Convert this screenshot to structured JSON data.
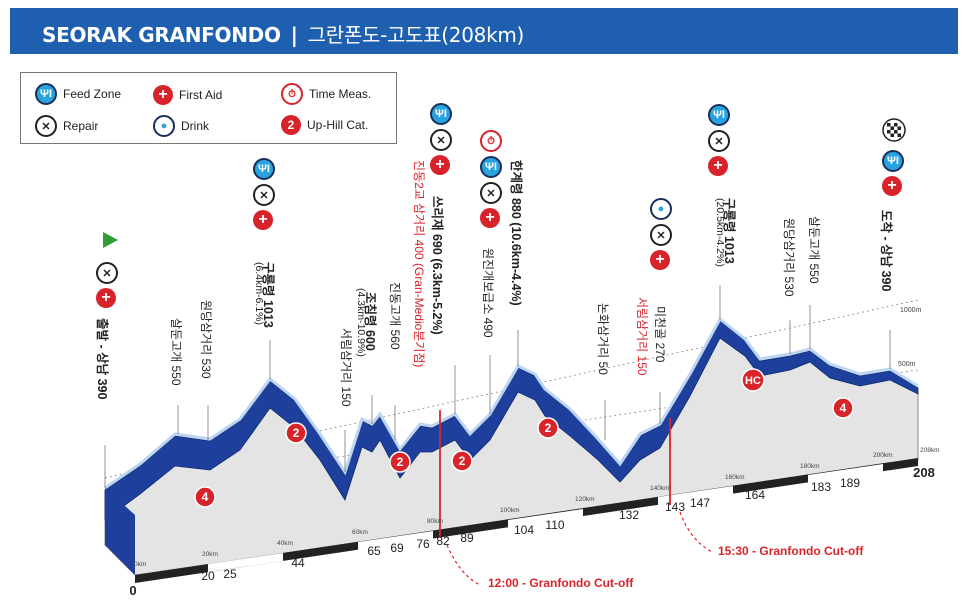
{
  "header": {
    "title": "SEORAK GRANFONDO",
    "separator": "|",
    "subtitle": "그란폰도-고도표(208km)"
  },
  "legend": {
    "feed_zone": "Feed Zone",
    "first_aid": "First Aid",
    "time_meas": "Time Meas.",
    "repair": "Repair",
    "drink": "Drink",
    "uphill_cat": "Up-Hill Cat.",
    "uphill_cat_example": "2"
  },
  "labels": {
    "start": "출발 - 상남 390",
    "salungogae1": "살둔고개 550",
    "wondang1": "원당삼거리 530",
    "guryong1": "구룡령 1013",
    "guryong1_grade": "(6.4km-6.1%)",
    "seorim1": "서림삼거리 150",
    "joCheolRyeong": "조침령 600",
    "joCheolRyeong_grade": "(4.3km-10.9%)",
    "jindonggogae": "진동고개 560",
    "jindong2": "진동2교 삼거리 400 (Gran-Medio분기점)",
    "ssirijae": "쓰리재 690 (6.3km-5.2%)",
    "wonjin": "원진개보급소 490",
    "hangyeryeong": "한계령 880 (10.6km-4.4%)",
    "nonhwa": "논화삼거리 50",
    "seorim2": "서림삼거리 150",
    "micheongol": "미천골 270",
    "guryong2": "구룡령 1013",
    "guryong2_grade": "(20.5km-4.2%)",
    "wondang2": "원당삼거리 530",
    "salungogae2": "살둔고개 550",
    "finish": "도착 - 상남 390"
  },
  "grid": {
    "alt_1000": "1000m",
    "alt_500": "500m",
    "km_marks": [
      "0km",
      "20km",
      "40km",
      "60km",
      "80km",
      "100km",
      "120km",
      "140km",
      "160km",
      "180km",
      "200km",
      "208km"
    ]
  },
  "km_points": [
    "0",
    "20",
    "25",
    "44",
    "65",
    "69",
    "76",
    "82",
    "89",
    "104",
    "110",
    "132",
    "143",
    "147",
    "164",
    "183",
    "189",
    "208"
  ],
  "categories": [
    "4",
    "2",
    "2",
    "2",
    "2",
    "HC",
    "4"
  ],
  "cutoffs": {
    "first": "12:00 - Granfondo Cut-off",
    "second": "15:30 - Granfondo Cut-off"
  },
  "colors": {
    "header": "#1f5fb0",
    "profile_blue": "#1f3f9c",
    "profile_light": "#bcd5f0",
    "red": "#d9232a"
  },
  "chart_data": {
    "type": "area",
    "title": "",
    "xlabel": "",
    "ylabel": "",
    "x": [
      0,
      10,
      20,
      25,
      30,
      40,
      44,
      50,
      60,
      65,
      69,
      76,
      80,
      82,
      86,
      89,
      95,
      100,
      104,
      110,
      115,
      120,
      125,
      132,
      138,
      143,
      147,
      155,
      160,
      164,
      170,
      175,
      183,
      189,
      195,
      200,
      208
    ],
    "y": [
      390,
      420,
      550,
      530,
      600,
      850,
      1013,
      800,
      150,
      600,
      450,
      560,
      400,
      690,
      480,
      490,
      650,
      880,
      700,
      800,
      500,
      150,
      50,
      120,
      150,
      270,
      400,
      800,
      1013,
      850,
      640,
      550,
      500,
      550,
      460,
      430,
      390
    ],
    "xlim": [
      0,
      208
    ],
    "ylim": [
      0,
      1100
    ]
  }
}
